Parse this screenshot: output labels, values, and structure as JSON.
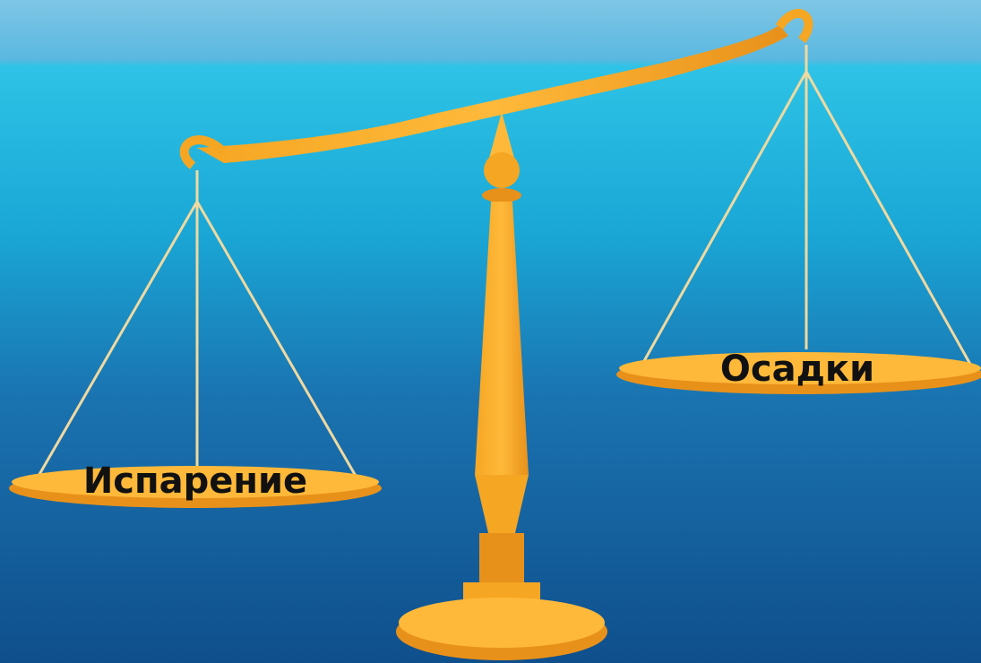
{
  "labels": {
    "left_pan": "Испарение",
    "right_pan": "Осадки"
  }
}
